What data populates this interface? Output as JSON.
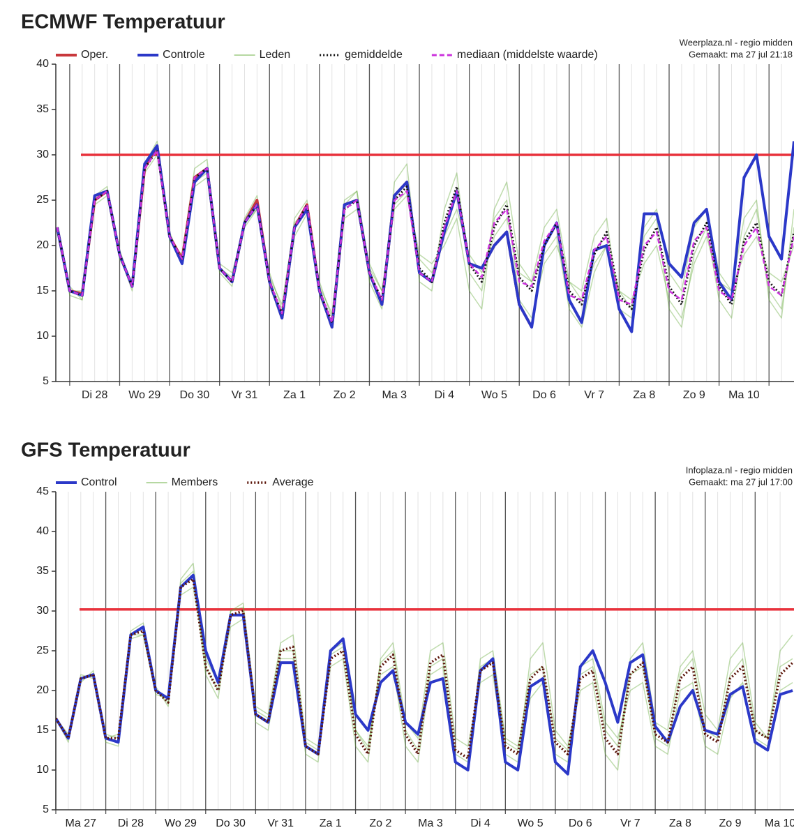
{
  "chart_data": [
    {
      "type": "line",
      "title": "ECMWF Temperatuur",
      "source": [
        "Weerplaza.nl - regio midden",
        "Gemaakt: ma 27 jul 21:18"
      ],
      "xlim": [
        -0.25,
        14.5
      ],
      "ylim": [
        5,
        40
      ],
      "yticks": [
        5,
        10,
        15,
        20,
        25,
        30,
        35,
        40
      ],
      "xgrid": [
        0,
        1,
        2,
        3,
        4,
        5,
        6,
        7,
        8,
        9,
        10,
        11,
        12,
        13,
        14
      ],
      "xticks": [
        {
          "value": 0.5,
          "label": "Di 28"
        },
        {
          "value": 1.5,
          "label": "Wo 29"
        },
        {
          "value": 2.5,
          "label": "Do 30"
        },
        {
          "value": 3.5,
          "label": "Vr 31"
        },
        {
          "value": 4.5,
          "label": "Za 1"
        },
        {
          "value": 5.5,
          "label": "Zo 2"
        },
        {
          "value": 6.5,
          "label": "Ma 3"
        },
        {
          "value": 7.5,
          "label": "Di 4"
        },
        {
          "value": 8.5,
          "label": "Wo 5"
        },
        {
          "value": 9.5,
          "label": "Do 6"
        },
        {
          "value": 10.5,
          "label": "Vr 7"
        },
        {
          "value": 11.5,
          "label": "Za 8"
        },
        {
          "value": 12.5,
          "label": "Zo 9"
        },
        {
          "value": 13.5,
          "label": "Ma 10"
        }
      ],
      "reference_line": {
        "value": 30,
        "color": "#e8323c"
      },
      "x": [
        -0.25,
        0,
        0.25,
        0.5,
        0.75,
        1,
        1.25,
        1.5,
        1.75,
        2,
        2.25,
        2.5,
        2.75,
        3,
        3.25,
        3.5,
        3.75,
        4,
        4.25,
        4.5,
        4.75,
        5,
        5.25,
        5.5,
        5.75,
        6,
        6.25,
        6.5,
        6.75,
        7,
        7.25,
        7.5,
        7.75,
        8,
        8.25,
        8.5,
        8.75,
        9,
        9.25,
        9.5,
        9.75,
        10,
        10.25,
        10.5,
        10.75,
        11,
        11.25,
        11.5,
        11.75,
        12,
        12.25,
        12.5,
        12.75,
        13,
        13.25,
        13.5,
        13.75,
        14,
        14.25,
        14.5
      ],
      "series": [
        {
          "name": "Oper.",
          "color": "#c8383c",
          "width": 4,
          "values": [
            22,
            15,
            14.7,
            25,
            26,
            19,
            15.5,
            28.5,
            31,
            21,
            18.5,
            27.5,
            28.5,
            17.5,
            16,
            22.5,
            25,
            16,
            12,
            22,
            24.5,
            15,
            11,
            24.5,
            25,
            17,
            13.5,
            25.5,
            27,
            17,
            16,
            21.5,
            26,
            18,
            17.5,
            20,
            21.5,
            13.5,
            11,
            null,
            null,
            null,
            null,
            null,
            null,
            null,
            null,
            null,
            null,
            null,
            null,
            null,
            null,
            null,
            null,
            null,
            null,
            null,
            null,
            null
          ]
        },
        {
          "name": "Controle",
          "color": "#2b38c8",
          "width": 4,
          "values": [
            22,
            15,
            14.5,
            25.5,
            26,
            19,
            15.5,
            29,
            31,
            21,
            18,
            27,
            28.5,
            17.5,
            16,
            22.5,
            24.5,
            16,
            12,
            22,
            24,
            15,
            11,
            24.5,
            25,
            17,
            13.5,
            25.5,
            27,
            17,
            16,
            21.5,
            26,
            18,
            17.5,
            20,
            21.5,
            13.5,
            11,
            20,
            22.5,
            14,
            11.5,
            19.5,
            20,
            13,
            10.5,
            23.5,
            23.5,
            18,
            16.5,
            22.5,
            24,
            16,
            14,
            27.5,
            30,
            21,
            18.5,
            31.5
          ]
        },
        {
          "name": "Leden",
          "color": "#5fa832",
          "width": 1.5,
          "runs": [
            [
              22,
              15.5,
              14,
              25.5,
              26.5,
              18.5,
              16,
              29,
              31.5,
              20.5,
              19,
              28.5,
              29.5,
              17,
              15.5,
              23,
              25.5,
              15.5,
              12,
              23,
              25,
              14.5,
              11,
              25,
              26,
              16,
              13,
              27,
              29,
              16,
              15,
              24,
              28,
              17,
              15,
              23,
              25,
              14,
              12,
              18,
              20,
              16,
              15,
              21,
              23,
              13,
              12,
              22,
              24,
              17,
              15,
              22,
              24,
              17,
              15,
              23,
              25,
              14,
              12,
              24
            ],
            [
              22,
              14.5,
              14,
              24.5,
              25.5,
              19,
              15,
              28,
              30,
              21.5,
              18,
              26.5,
              27.5,
              18,
              17,
              22,
              24,
              17,
              13,
              21,
              23.5,
              16,
              12,
              23,
              24,
              18,
              15,
              24,
              25.5,
              18.5,
              17,
              21,
              24,
              19,
              17,
              21,
              23,
              17,
              16,
              22,
              24,
              16,
              14,
              18,
              20,
              15,
              14,
              18,
              20,
              14,
              12,
              18,
              21,
              16,
              15,
              19,
              21,
              17,
              16,
              20
            ],
            [
              22,
              15,
              15,
              25,
              26,
              19.5,
              15.5,
              28.5,
              30.5,
              21,
              18.5,
              27,
              28,
              17.5,
              16.5,
              22.5,
              24,
              16.5,
              13.5,
              22.5,
              24,
              15.5,
              12.5,
              24.5,
              26,
              17.5,
              15,
              24.5,
              26,
              19,
              18,
              20,
              23,
              15,
              13,
              24,
              27,
              18,
              16,
              19,
              21,
              13,
              11,
              17,
              20,
              15,
              13,
              21,
              23,
              13,
              11,
              19,
              22,
              14,
              12,
              21,
              24,
              15,
              13,
              22
            ]
          ]
        },
        {
          "name": "gemiddelde",
          "color": "#111111",
          "width": 3,
          "dash": "dotted",
          "values": [
            22,
            15,
            14.5,
            25,
            26,
            19,
            15.5,
            28.5,
            30.5,
            21,
            18.5,
            27.5,
            28.5,
            17.5,
            16,
            22.5,
            24.5,
            16,
            12.5,
            22,
            24.5,
            15,
            11.5,
            24,
            25,
            17,
            14,
            25,
            26.5,
            17.5,
            16,
            22.5,
            26.5,
            18,
            16,
            22,
            24.5,
            16.5,
            15,
            20,
            22.5,
            15,
            13.5,
            19,
            21.5,
            14.5,
            13,
            19.5,
            22,
            15.5,
            13.5,
            20,
            22.5,
            15.5,
            13.5,
            20.5,
            22.5,
            16,
            14.5,
            21.5
          ]
        },
        {
          "name": "mediaan (middelste waarde)",
          "color": "#cc33dd",
          "width": 2.5,
          "dash": "dashed",
          "values": [
            22,
            15,
            14.5,
            25,
            26,
            19,
            15.5,
            28.5,
            30.5,
            21,
            18.5,
            27.5,
            28.5,
            17.5,
            16,
            22.5,
            24.5,
            16,
            12.5,
            22,
            24.5,
            15,
            11.5,
            24,
            25,
            17,
            14,
            25,
            26,
            17,
            16,
            22,
            26,
            18,
            16.5,
            22.5,
            24,
            16,
            15.5,
            20.5,
            22.5,
            14.5,
            14,
            19.5,
            21,
            14,
            13.5,
            20,
            21.5,
            15,
            14,
            20.5,
            22,
            15,
            14,
            20,
            22,
            15.5,
            14.5,
            21
          ]
        }
      ]
    },
    {
      "type": "line",
      "title": "GFS Temperatuur",
      "source": [
        "Infoplaza.nl - regio midden",
        "Gemaakt: ma 27 jul 17:00"
      ],
      "xlim": [
        0,
        14.75
      ],
      "ylim": [
        5,
        45
      ],
      "yticks": [
        5,
        10,
        15,
        20,
        25,
        30,
        35,
        40,
        45
      ],
      "xgrid": [
        0,
        1,
        2,
        3,
        4,
        5,
        6,
        7,
        8,
        9,
        10,
        11,
        12,
        13,
        14
      ],
      "xticks": [
        {
          "value": 0.5,
          "label": "Ma 27"
        },
        {
          "value": 1.5,
          "label": "Di 28"
        },
        {
          "value": 2.5,
          "label": "Wo 29"
        },
        {
          "value": 3.5,
          "label": "Do 30"
        },
        {
          "value": 4.5,
          "label": "Vr 31"
        },
        {
          "value": 5.5,
          "label": "Za 1"
        },
        {
          "value": 6.5,
          "label": "Zo 2"
        },
        {
          "value": 7.5,
          "label": "Ma 3"
        },
        {
          "value": 8.5,
          "label": "Di 4"
        },
        {
          "value": 9.5,
          "label": "Wo 5"
        },
        {
          "value": 10.5,
          "label": "Do 6"
        },
        {
          "value": 11.5,
          "label": "Vr 7"
        },
        {
          "value": 12.5,
          "label": "Za 8"
        },
        {
          "value": 13.5,
          "label": "Zo 9"
        },
        {
          "value": 14.5,
          "label": "Ma 10"
        }
      ],
      "reference_line": {
        "value": 30.2,
        "color": "#e8323c"
      },
      "x": [
        0,
        0.25,
        0.5,
        0.75,
        1,
        1.25,
        1.5,
        1.75,
        2,
        2.25,
        2.5,
        2.75,
        3,
        3.25,
        3.5,
        3.75,
        4,
        4.25,
        4.5,
        4.75,
        5,
        5.25,
        5.5,
        5.75,
        6,
        6.25,
        6.5,
        6.75,
        7,
        7.25,
        7.5,
        7.75,
        8,
        8.25,
        8.5,
        8.75,
        9,
        9.25,
        9.5,
        9.75,
        10,
        10.25,
        10.5,
        10.75,
        11,
        11.25,
        11.5,
        11.75,
        12,
        12.25,
        12.5,
        12.75,
        13,
        13.25,
        13.5,
        13.75,
        14,
        14.25,
        14.5,
        14.75
      ],
      "series": [
        {
          "name": "Control",
          "color": "#2b38c8",
          "width": 4,
          "values": [
            16.5,
            14,
            21.5,
            22,
            14,
            13.5,
            27,
            28,
            20,
            19,
            33,
            34.5,
            25,
            21,
            29.5,
            29.5,
            17,
            16,
            23.5,
            23.5,
            13,
            12,
            25,
            26.5,
            17,
            15,
            21,
            22.5,
            16,
            14.5,
            21,
            21.5,
            11,
            10,
            22.5,
            24,
            11,
            10,
            20.5,
            21.5,
            11,
            9.5,
            23,
            25,
            21,
            16,
            23.5,
            24.5,
            15.5,
            13.5,
            18,
            20,
            15,
            14.5,
            19.5,
            20.5,
            13.5,
            12.5,
            19.5,
            20
          ]
        },
        {
          "name": "Members",
          "color": "#5fa832",
          "width": 1.5,
          "runs": [
            [
              16.5,
              14.5,
              21,
              22.5,
              14.5,
              14,
              27.5,
              28.5,
              20.5,
              18,
              33.5,
              35,
              22,
              19,
              30,
              31,
              18,
              17,
              26,
              27,
              14,
              13,
              23,
              24,
              13,
              11,
              24,
              26,
              16,
              14,
              25,
              26,
              14,
              13,
              21,
              22,
              12,
              11,
              24,
              26,
              15,
              13,
              20,
              21,
              12,
              10,
              24,
              26,
              16,
              15,
              23,
              25,
              17,
              15,
              24,
              26,
              16,
              14,
              25,
              27
            ],
            [
              16.5,
              13.5,
              22,
              21.5,
              13.5,
              13,
              26.5,
              27,
              19.5,
              19,
              32,
              33,
              24,
              21,
              28,
              29,
              16,
              15,
              24,
              24,
              12,
              11,
              25,
              26,
              15,
              13,
              22,
              23,
              13,
              11,
              22,
              23,
              11,
              10,
              24,
              25,
              14,
              13,
              19,
              21,
              12,
              11,
              23,
              24,
              16,
              14,
              20,
              21,
              13,
              12,
              20,
              21,
              13,
              12,
              19,
              21,
              14,
              13,
              20,
              21
            ],
            [
              16.5,
              14,
              21.5,
              22,
              14,
              14.5,
              27,
              27,
              20,
              18.5,
              34,
              36,
              23,
              20,
              30,
              30.5,
              17.5,
              16.5,
              25,
              25,
              13.5,
              12.5,
              24.5,
              25.5,
              15,
              12.5,
              23.5,
              25,
              15,
              12.5,
              23,
              24,
              12,
              11,
              23,
              24,
              13.5,
              12.5,
              22,
              23,
              14,
              12.5,
              22,
              23,
              15,
              13,
              22,
              23,
              14,
              13,
              22,
              24,
              15,
              14,
              22,
              24,
              15,
              14,
              23,
              24
            ]
          ]
        },
        {
          "name": "Average",
          "color": "#5a1408",
          "width": 3.5,
          "dash": "dotted",
          "values": [
            16.5,
            14,
            21.5,
            22,
            14,
            14,
            27,
            27.5,
            20,
            18.5,
            33,
            34,
            23,
            20,
            29.5,
            30,
            17,
            16,
            25,
            25.5,
            13,
            12,
            24,
            25,
            14.5,
            12,
            23,
            24.5,
            14.5,
            12,
            23.5,
            24.5,
            12.5,
            11.5,
            22.5,
            23.5,
            13,
            12,
            21.5,
            23,
            13.5,
            12,
            21.5,
            22.5,
            14,
            12,
            22,
            23.5,
            14.5,
            13.5,
            21.5,
            23,
            14.5,
            13.5,
            21.5,
            23,
            15,
            14,
            22,
            23.5
          ]
        }
      ]
    }
  ]
}
